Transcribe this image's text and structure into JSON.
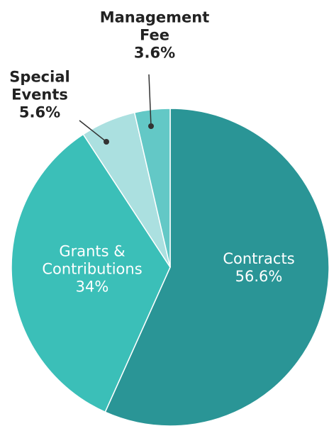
{
  "chart_data": {
    "type": "pie",
    "categories": [
      "Contracts",
      "Grants & Contributions",
      "Special Events",
      "Management Fee"
    ],
    "values": [
      56.6,
      34,
      5.6,
      3.6
    ],
    "value_labels": [
      "56.6%",
      "34%",
      "5.6%",
      "3.6%"
    ],
    "colors": [
      "#2a9596",
      "#3bbfb8",
      "#abe0e0",
      "#63c8c6"
    ]
  }
}
